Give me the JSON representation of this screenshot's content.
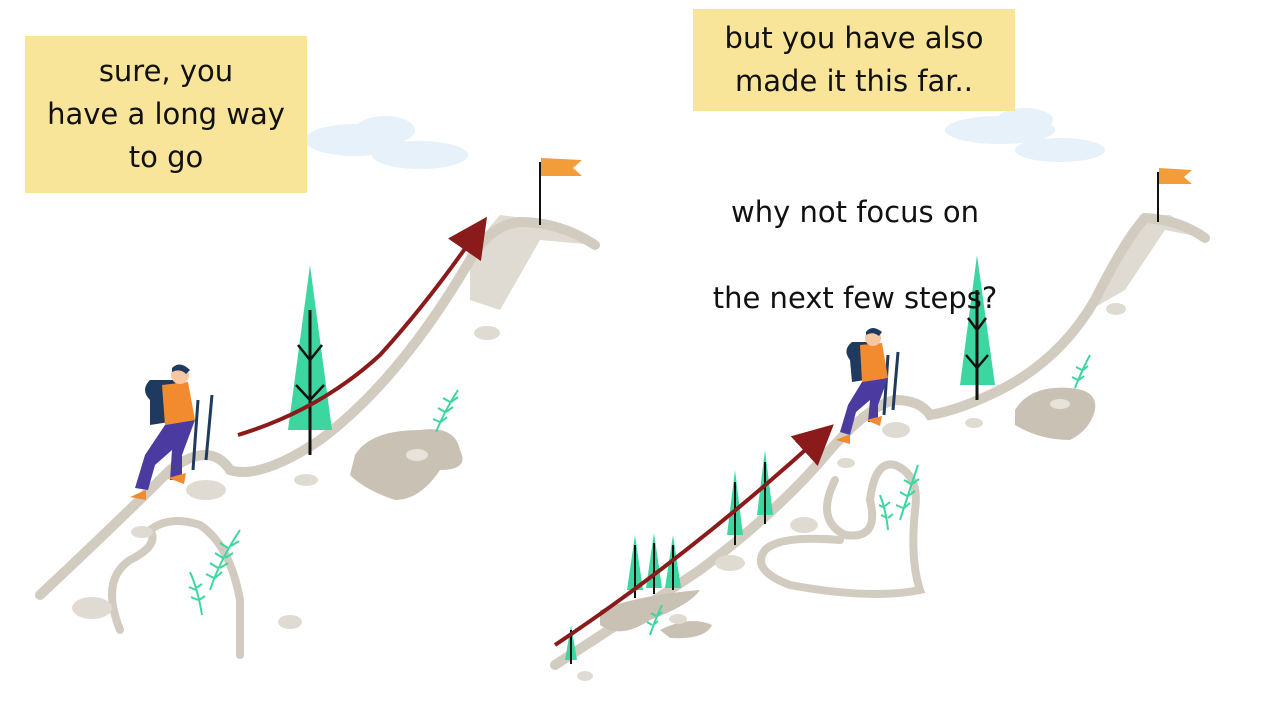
{
  "left_panel": {
    "note_lines": [
      "sure, you",
      "have a long way",
      "to go"
    ]
  },
  "right_panel": {
    "note_lines": [
      "but you have also",
      "made it this far.."
    ],
    "question_lines": [
      "why not focus on",
      "the next few steps?"
    ]
  },
  "colors": {
    "note_background": "#f8e59a",
    "arrow": "#8b1a1a",
    "path": "#d2cbbf",
    "tree": "#3ed6a0",
    "flag": "#f39c3a",
    "cloud": "#e6f1fa",
    "backpack": "#1f3a5f",
    "shirt": "#f28b30",
    "pants": "#4b3aa0"
  },
  "icons": [
    "hiker-icon",
    "flag-icon",
    "tree-icon",
    "cloud-icon",
    "fern-icon",
    "arrow-icon"
  ]
}
